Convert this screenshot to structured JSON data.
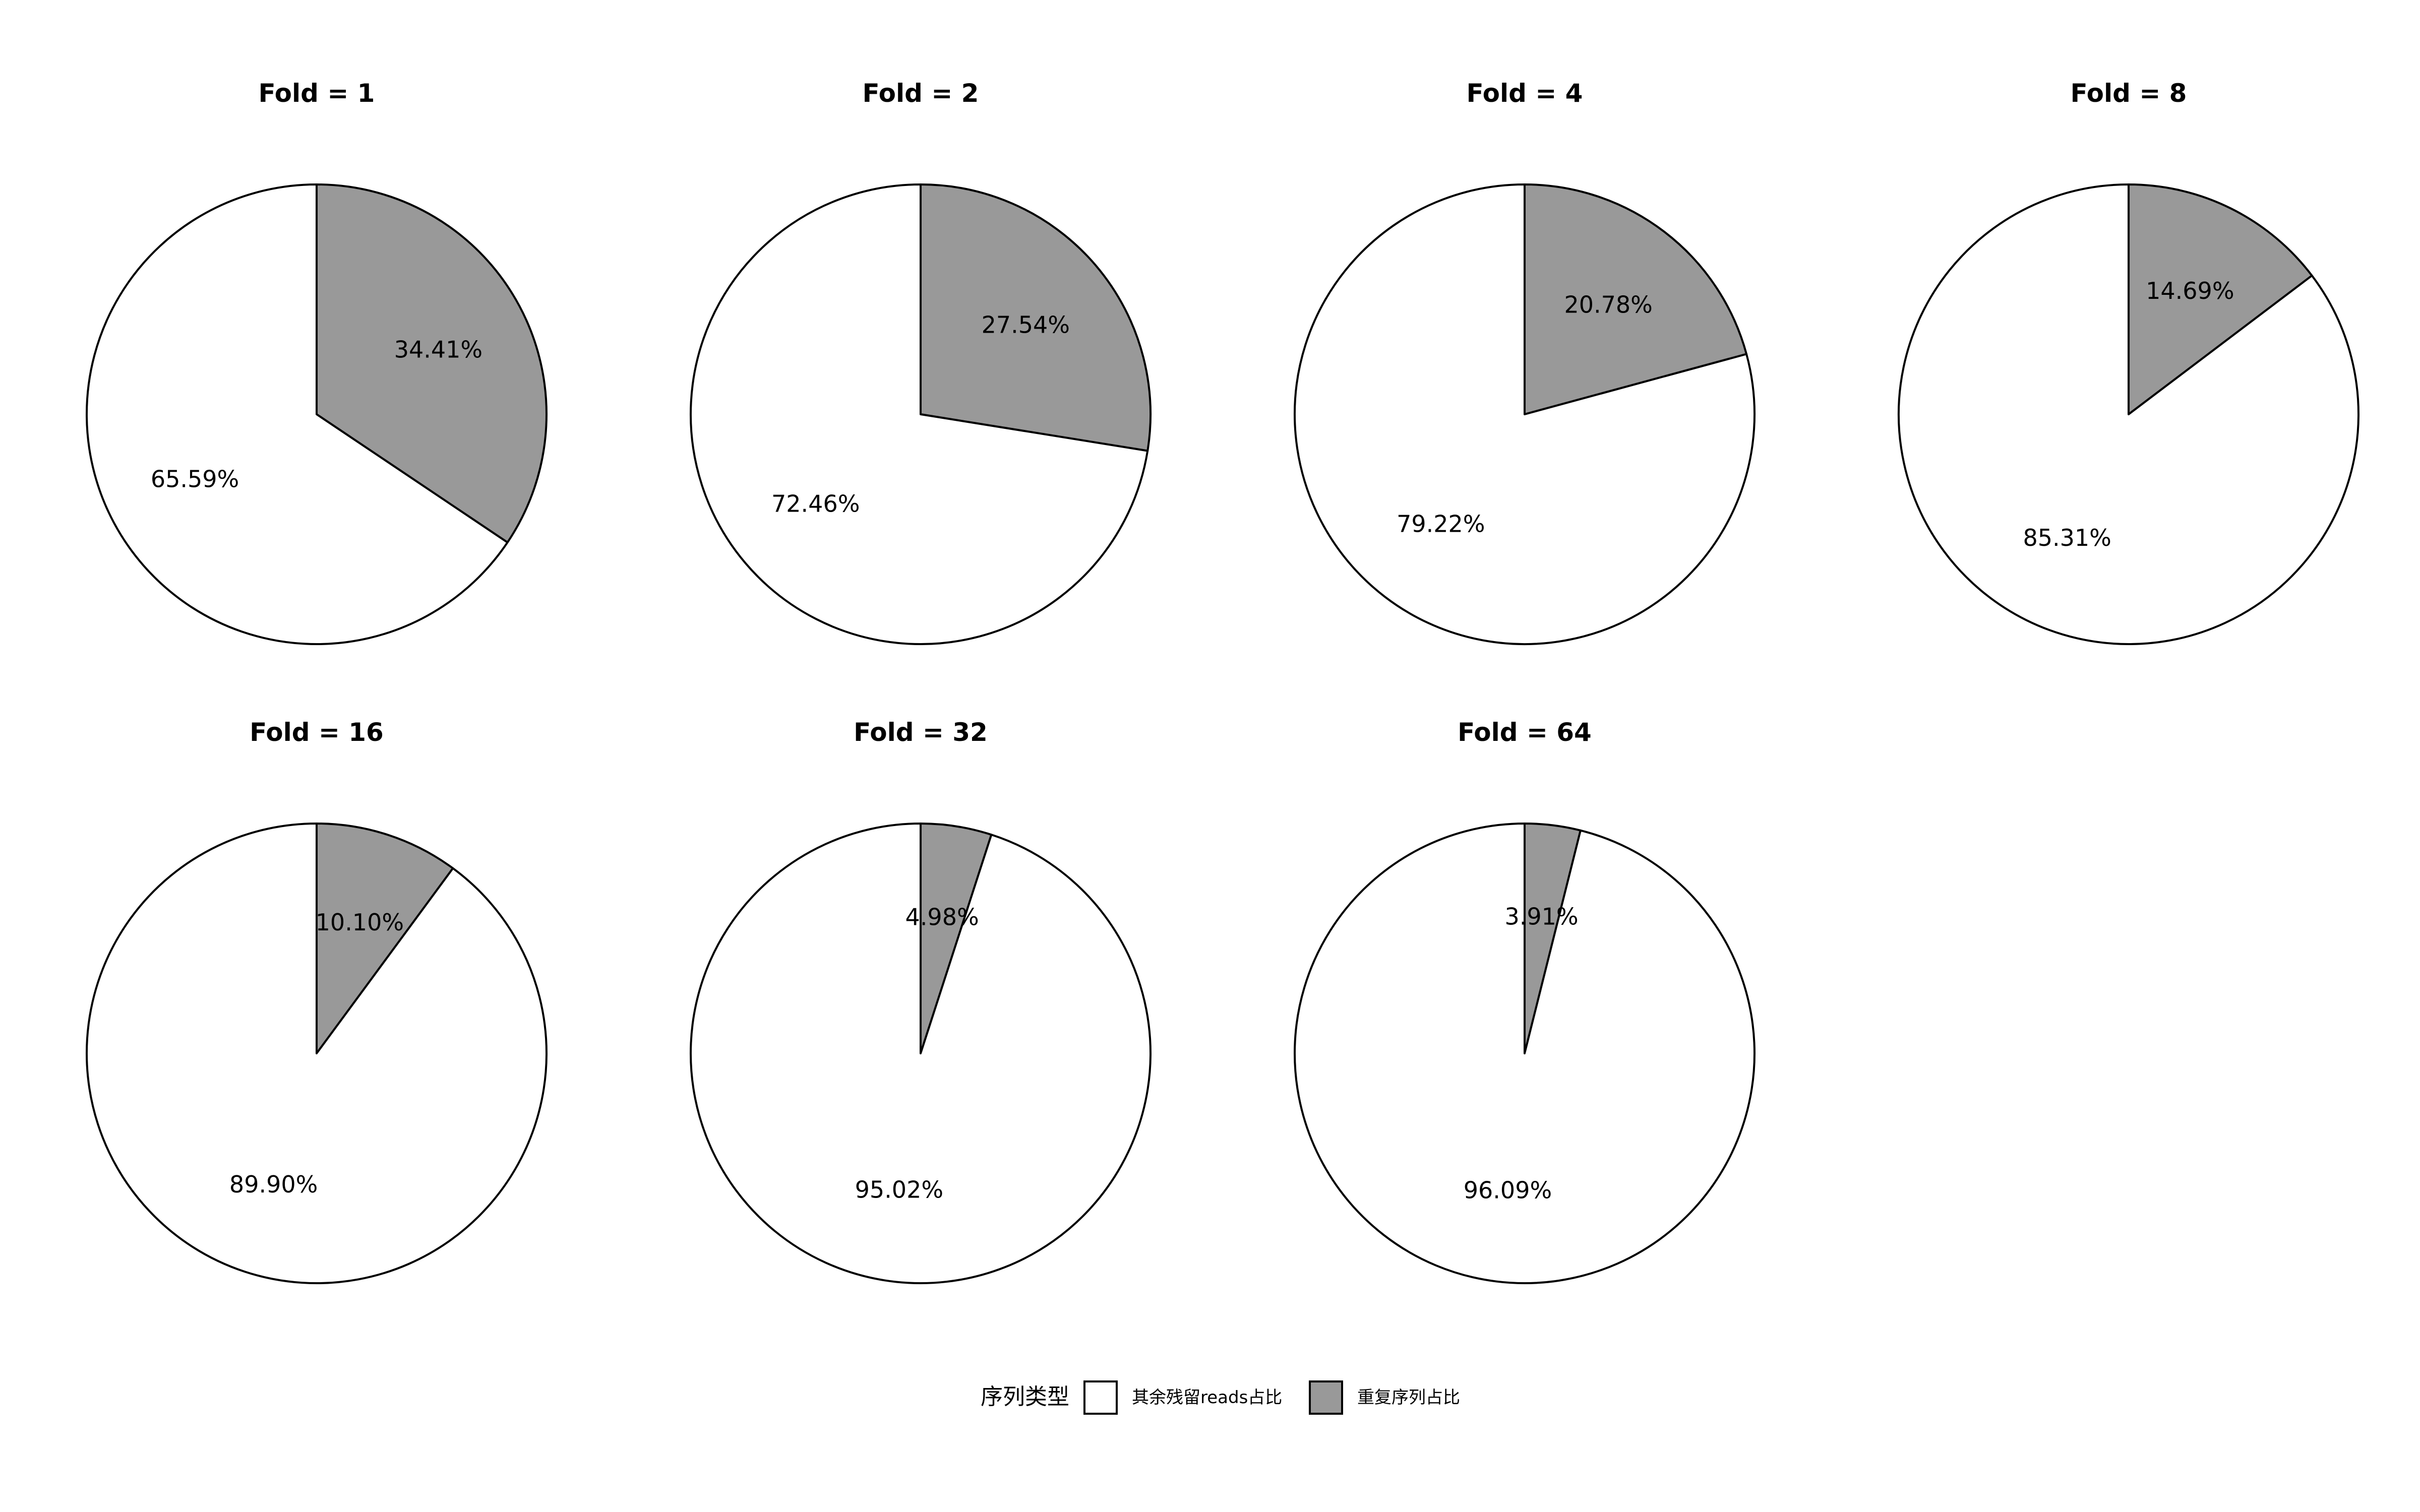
{
  "chart_data": {
    "type": "pie",
    "colors": {
      "重复序列占比": "#999999",
      "其余残留reads占比": "#ffffff",
      "edge": "#000000"
    },
    "legend": {
      "title": "序列类型",
      "entries": [
        "其余残留reads占比",
        "重复序列占比"
      ],
      "placement": "bottom-center"
    },
    "panels": [
      {
        "title": "Fold = 1",
        "slices": [
          {
            "name": "重复序列占比",
            "value": 34.41,
            "label": "34.41%"
          },
          {
            "name": "其余残留reads占比",
            "value": 65.59,
            "label": "65.59%"
          }
        ]
      },
      {
        "title": "Fold = 2",
        "slices": [
          {
            "name": "重复序列占比",
            "value": 27.54,
            "label": "27.54%"
          },
          {
            "name": "其余残留reads占比",
            "value": 72.46,
            "label": "72.46%"
          }
        ]
      },
      {
        "title": "Fold = 4",
        "slices": [
          {
            "name": "重复序列占比",
            "value": 20.78,
            "label": "20.78%"
          },
          {
            "name": "其余残留reads占比",
            "value": 79.22,
            "label": "79.22%"
          }
        ]
      },
      {
        "title": "Fold = 8",
        "slices": [
          {
            "name": "重复序列占比",
            "value": 14.69,
            "label": "14.69%"
          },
          {
            "name": "其余残留reads占比",
            "value": 85.31,
            "label": "85.31%"
          }
        ]
      },
      {
        "title": "Fold = 16",
        "slices": [
          {
            "name": "重复序列占比",
            "value": 10.1,
            "label": "10.10%"
          },
          {
            "name": "其余残留reads占比",
            "value": 89.9,
            "label": "89.90%"
          }
        ]
      },
      {
        "title": "Fold = 32",
        "slices": [
          {
            "name": "重复序列占比",
            "value": 4.98,
            "label": "4.98%"
          },
          {
            "name": "其余残留reads占比",
            "value": 95.02,
            "label": "95.02%"
          }
        ]
      },
      {
        "title": "Fold = 64",
        "slices": [
          {
            "name": "重复序列占比",
            "value": 3.91,
            "label": "3.91%"
          },
          {
            "name": "其余残留reads占比",
            "value": 96.09,
            "label": "96.09%"
          }
        ]
      }
    ]
  }
}
